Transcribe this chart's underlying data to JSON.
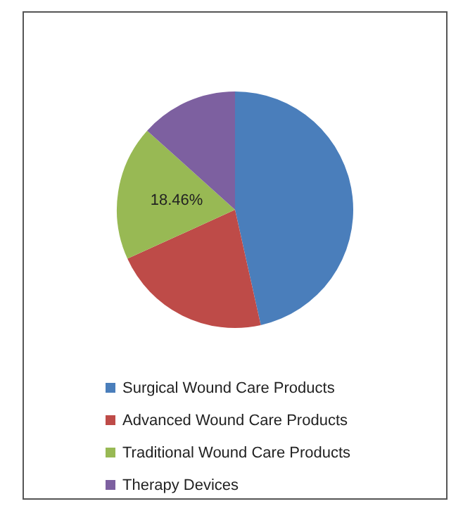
{
  "chart_data": {
    "type": "pie",
    "categories": [
      "Surgical Wound Care Products",
      "Advanced Wound Care Products",
      "Traditional Wound Care Products",
      "Therapy Devices"
    ],
    "values": [
      46.5,
      21.7,
      18.46,
      13.34
    ],
    "colors": [
      "#4a7ebb",
      "#be4b48",
      "#98b954",
      "#7d60a0"
    ],
    "value_labels": [
      null,
      null,
      "18.46%",
      null
    ],
    "legend": "bottom"
  }
}
